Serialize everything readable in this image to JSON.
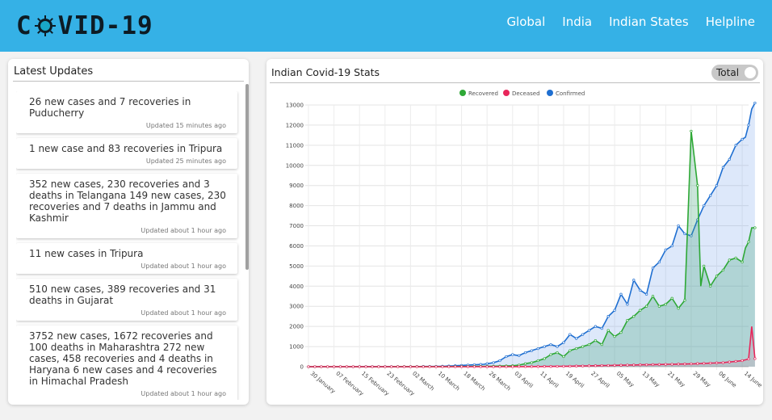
{
  "header": {
    "logo_left": "C",
    "logo_right": "VID-19",
    "nav": [
      "Global",
      "India",
      "Indian States",
      "Helpline"
    ]
  },
  "updates": {
    "title": "Latest Updates",
    "items": [
      {
        "text": "26 new cases and 7 recoveries in Puducherry",
        "time": "Updated 15 minutes ago"
      },
      {
        "text": "1 new case and 83 recoveries in Tripura",
        "time": "Updated 25 minutes ago"
      },
      {
        "text": "352 new cases, 230 recoveries and 3 deaths in Telangana 149 new cases, 230 recoveries and 7 deaths in Jammu and Kashmir",
        "time": "Updated about 1 hour ago"
      },
      {
        "text": "11 new cases in Tripura",
        "time": "Updated about 1 hour ago"
      },
      {
        "text": "510 new cases, 389 recoveries and 31 deaths in Gujarat",
        "time": "Updated about 1 hour ago"
      },
      {
        "text": "3752 new cases, 1672 recoveries and 100 deaths in Maharashtra 272 new cases, 458 recoveries and 4 deaths in Haryana 6 new cases and 4 recoveries in Himachal Pradesh",
        "time": "Updated about 1 hour ago"
      }
    ]
  },
  "stats": {
    "title": "Indian Covid-19 Stats",
    "toggle_label": "Total"
  },
  "colors": {
    "recovered": "#2ea836",
    "deceased": "#e8265b",
    "confirmed": "#1f6fd1"
  },
  "chart_data": {
    "type": "line",
    "title": "Indian Covid-19 Stats",
    "legend": [
      "Recovered",
      "Deceased",
      "Confirmed"
    ],
    "legend_position": "top-center",
    "y_ticks": [
      0,
      1000,
      2000,
      3000,
      4000,
      5000,
      6000,
      7000,
      8000,
      9000,
      10000,
      11000,
      12000,
      13000
    ],
    "ylim": [
      0,
      13000
    ],
    "x_tick_labels": [
      "30 January",
      "07 February",
      "15 February",
      "23 February",
      "02 March",
      "10 March",
      "18 March",
      "26 March",
      "03 April",
      "11 April",
      "19 April",
      "27 April",
      "05 May",
      "13 May",
      "21 May",
      "29 May",
      "06 June",
      "14 June"
    ],
    "x_tick_days": [
      0,
      8,
      16,
      24,
      32,
      40,
      48,
      56,
      64,
      72,
      80,
      88,
      96,
      104,
      112,
      120,
      128,
      136
    ],
    "x_range_days": [
      0,
      138
    ],
    "series": [
      {
        "name": "Confirmed",
        "points": [
          [
            0,
            1
          ],
          [
            30,
            3
          ],
          [
            35,
            10
          ],
          [
            40,
            15
          ],
          [
            45,
            40
          ],
          [
            50,
            80
          ],
          [
            55,
            120
          ],
          [
            58,
            200
          ],
          [
            60,
            300
          ],
          [
            62,
            500
          ],
          [
            64,
            600
          ],
          [
            66,
            550
          ],
          [
            68,
            700
          ],
          [
            70,
            800
          ],
          [
            72,
            900
          ],
          [
            74,
            1000
          ],
          [
            76,
            1100
          ],
          [
            78,
            1000
          ],
          [
            80,
            1200
          ],
          [
            82,
            1600
          ],
          [
            84,
            1400
          ],
          [
            86,
            1600
          ],
          [
            88,
            1800
          ],
          [
            90,
            2000
          ],
          [
            92,
            1900
          ],
          [
            94,
            2500
          ],
          [
            96,
            2800
          ],
          [
            98,
            3600
          ],
          [
            100,
            3100
          ],
          [
            102,
            4300
          ],
          [
            104,
            3800
          ],
          [
            106,
            3600
          ],
          [
            108,
            4900
          ],
          [
            110,
            5200
          ],
          [
            112,
            5800
          ],
          [
            114,
            6000
          ],
          [
            116,
            7000
          ],
          [
            118,
            6600
          ],
          [
            120,
            6500
          ],
          [
            122,
            7300
          ],
          [
            124,
            8000
          ],
          [
            126,
            8500
          ],
          [
            128,
            9000
          ],
          [
            130,
            9900
          ],
          [
            132,
            10300
          ],
          [
            134,
            11000
          ],
          [
            136,
            11300
          ],
          [
            137,
            11400
          ],
          [
            138,
            12000
          ],
          [
            139,
            12800
          ],
          [
            140,
            13100
          ]
        ]
      },
      {
        "name": "Recovered",
        "points": [
          [
            0,
            0
          ],
          [
            40,
            3
          ],
          [
            50,
            10
          ],
          [
            60,
            30
          ],
          [
            64,
            50
          ],
          [
            66,
            80
          ],
          [
            68,
            150
          ],
          [
            70,
            200
          ],
          [
            72,
            300
          ],
          [
            74,
            400
          ],
          [
            76,
            600
          ],
          [
            78,
            700
          ],
          [
            80,
            500
          ],
          [
            82,
            800
          ],
          [
            84,
            900
          ],
          [
            86,
            1000
          ],
          [
            88,
            1100
          ],
          [
            90,
            1300
          ],
          [
            92,
            1100
          ],
          [
            94,
            1800
          ],
          [
            96,
            1500
          ],
          [
            98,
            1700
          ],
          [
            100,
            2300
          ],
          [
            102,
            2500
          ],
          [
            104,
            2800
          ],
          [
            106,
            3000
          ],
          [
            108,
            3500
          ],
          [
            110,
            3000
          ],
          [
            112,
            3100
          ],
          [
            114,
            3400
          ],
          [
            116,
            2900
          ],
          [
            118,
            3300
          ],
          [
            120,
            11700
          ],
          [
            122,
            9000
          ],
          [
            123,
            4000
          ],
          [
            124,
            5000
          ],
          [
            126,
            4000
          ],
          [
            128,
            4500
          ],
          [
            130,
            4800
          ],
          [
            132,
            5300
          ],
          [
            134,
            5400
          ],
          [
            136,
            5200
          ],
          [
            137,
            5900
          ],
          [
            138,
            6200
          ],
          [
            139,
            6900
          ],
          [
            140,
            6900
          ]
        ]
      },
      {
        "name": "Deceased",
        "points": [
          [
            0,
            0
          ],
          [
            60,
            0
          ],
          [
            70,
            5
          ],
          [
            80,
            20
          ],
          [
            90,
            50
          ],
          [
            100,
            80
          ],
          [
            110,
            110
          ],
          [
            120,
            140
          ],
          [
            130,
            200
          ],
          [
            136,
            300
          ],
          [
            138,
            380
          ],
          [
            139,
            2000
          ],
          [
            140,
            400
          ]
        ]
      }
    ]
  }
}
